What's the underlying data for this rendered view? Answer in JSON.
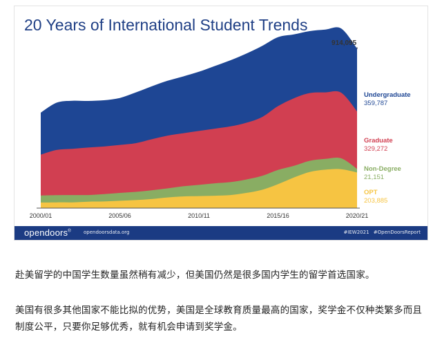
{
  "chart_data": {
    "type": "area",
    "stacked": true,
    "title": "20 Years of International Student Trends",
    "x_tick_labels": [
      "2000/01",
      "2005/06",
      "2010/11",
      "2015/16",
      "2020/21"
    ],
    "total_annotation": "914,095",
    "colors": {
      "Undergraduate": "#1e4694",
      "Graduate": "#d13f51",
      "Non-Degree": "#89ad63",
      "OPT": "#f6c442"
    },
    "series": [
      {
        "name": "OPT",
        "value_label": "203,885",
        "values": [
          32,
          33,
          33,
          37,
          38,
          42,
          46,
          52,
          61,
          67,
          69,
          71,
          75,
          87,
          105,
          137,
          175,
          207,
          220,
          223,
          204
        ]
      },
      {
        "name": "Non-Degree",
        "value_label": "21,151",
        "values": [
          40,
          41,
          42,
          38,
          42,
          45,
          47,
          50,
          52,
          58,
          64,
          71,
          74,
          77,
          80,
          82,
          67,
          64,
          62,
          62,
          21
        ]
      },
      {
        "name": "Graduate",
        "value_label": "329,272",
        "values": [
          234,
          259,
          265,
          272,
          273,
          275,
          279,
          292,
          302,
          304,
          309,
          313,
          319,
          325,
          337,
          365,
          387,
          388,
          381,
          376,
          329
        ]
      },
      {
        "name": "Undergraduate",
        "value_label": "359,787",
        "values": [
          241,
          271,
          275,
          267,
          265,
          269,
          290,
          303,
          314,
          325,
          339,
          359,
          379,
          396,
          407,
          395,
          366,
          355,
          360,
          368,
          360
        ]
      }
    ]
  },
  "footer": {
    "logo": "opendoors",
    "logo_mark": "®",
    "site": "opendoorsdata.org",
    "hashtags": "#IEW2021  #OpenDoorsReport"
  },
  "article": {
    "paragraph_1": "赴美留学的中国学生数量虽然稍有减少，但美国仍然是很多国内学生的留学首选国家。",
    "paragraph_2": "美国有很多其他国家不能比拟的优势，美国是全球教育质量最高的国家，奖学金不仅种类繁多而且制度公平，只要你足够优秀，就有机会申请到奖学金。"
  }
}
